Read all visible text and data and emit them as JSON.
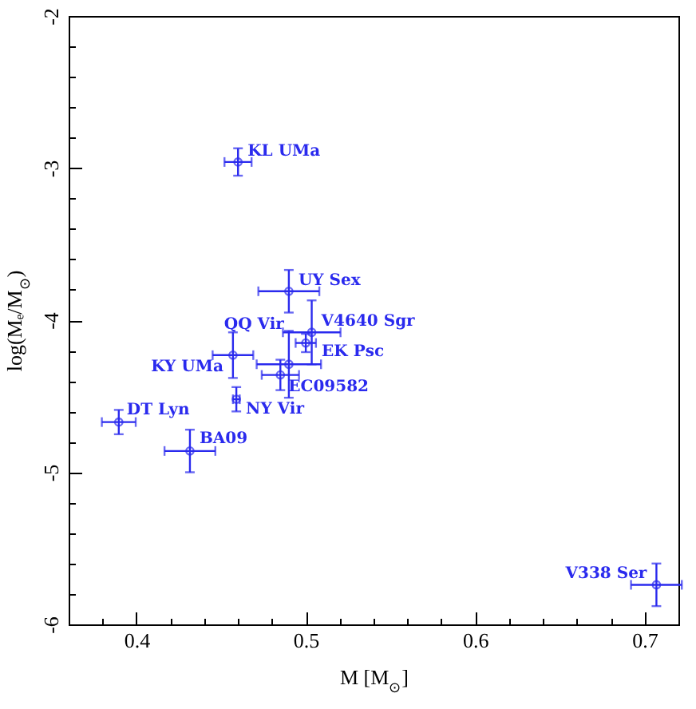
{
  "chart_data": {
    "type": "scatter",
    "xlabel": "M [M$_{⊙}$]",
    "ylabel": "log(Mₑ/M$_{⊙}$)",
    "x": [
      0.46,
      0.49,
      0.5035,
      0.5,
      0.49,
      0.457,
      0.485,
      0.459,
      0.3896,
      0.4316,
      0.707
    ],
    "values": [
      -2.96,
      -3.81,
      -4.08,
      -4.15,
      -4.29,
      -4.23,
      -4.36,
      -4.52,
      -4.67,
      -4.86,
      -5.74
    ],
    "errors": [
      0.09,
      0.14,
      0.21,
      0.06,
      0.22,
      0.15,
      0.1,
      0.08,
      0.08,
      0.14,
      0.14
    ],
    "xerrors": [
      0.008,
      0.018,
      0.017,
      0.006,
      0.019,
      0.012,
      0.011,
      0.002,
      0.01,
      0.015,
      0.015
    ],
    "color": "#2a2aee",
    "marker": "circle",
    "xlim": [
      0.36,
      0.72
    ],
    "xticks": [
      {
        "value": 0.38,
        "label": null
      },
      0.4,
      {
        "value": 0.42,
        "label": null
      },
      {
        "value": 0.44,
        "label": null
      },
      {
        "value": 0.46,
        "label": null
      },
      {
        "value": 0.48,
        "label": null
      },
      0.5,
      {
        "value": 0.52,
        "label": null
      },
      {
        "value": 0.54,
        "label": null
      },
      {
        "value": 0.56,
        "label": null
      },
      {
        "value": 0.58,
        "label": null
      },
      0.6,
      {
        "value": 0.62,
        "label": null
      },
      {
        "value": 0.64,
        "label": null
      },
      {
        "value": 0.66,
        "label": null
      },
      {
        "value": 0.68,
        "label": null
      },
      0.7
    ],
    "ylim": [
      -6,
      -2
    ],
    "yticks": [
      -6,
      {
        "value": -5.8,
        "label": null
      },
      {
        "value": -5.6,
        "label": null
      },
      {
        "value": -5.4,
        "label": null
      },
      {
        "value": -5.2,
        "label": null
      },
      -5,
      {
        "value": -4.8,
        "label": null
      },
      {
        "value": -4.6,
        "label": null
      },
      {
        "value": -4.4,
        "label": null
      },
      {
        "value": -4.2,
        "label": null
      },
      -4,
      {
        "value": -3.8,
        "label": null
      },
      {
        "value": -3.6,
        "label": null
      },
      {
        "value": -3.4,
        "label": null
      },
      {
        "value": -3.2,
        "label": null
      },
      -3,
      {
        "value": -2.8,
        "label": null
      },
      {
        "value": -2.6,
        "label": null
      },
      {
        "value": -2.4,
        "label": null
      },
      {
        "value": -2.2,
        "label": null
      },
      -2
    ],
    "annotations": [
      {
        "text": "KL UMa",
        "x": 0.46,
        "y": -2.96
      },
      {
        "text": "UY Sex",
        "x": 0.49,
        "y": -3.81
      },
      {
        "text": "V4640 Sgr",
        "x": 0.5035,
        "y": -4.08
      },
      {
        "text": "EK Psc",
        "x": 0.5,
        "y": -4.15
      },
      {
        "text": "QQ Vir",
        "x": 0.49,
        "y": -4.29
      },
      {
        "text": "KY UMa",
        "x": 0.457,
        "y": -4.23
      },
      {
        "text": "EC09582",
        "x": 0.485,
        "y": -4.36
      },
      {
        "text": "NY Vir",
        "x": 0.459,
        "y": -4.52
      },
      {
        "text": "DT Lyn",
        "x": 0.3896,
        "y": -4.67
      },
      {
        "text": "BA09",
        "x": 0.4316,
        "y": -4.86
      },
      {
        "text": "V338 Ser",
        "x": 0.707,
        "y": -5.74
      }
    ]
  }
}
